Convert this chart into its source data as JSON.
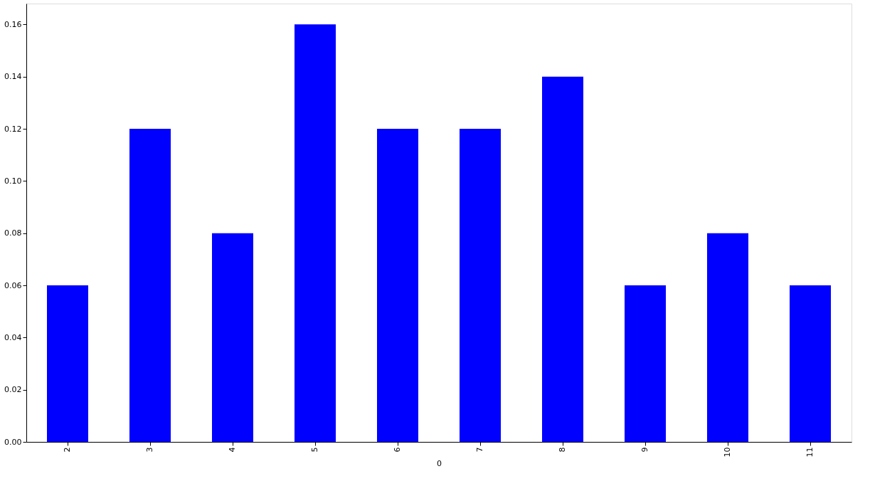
{
  "chart_data": {
    "type": "bar",
    "xlabel": "0",
    "categories": [
      "2",
      "3",
      "4",
      "5",
      "6",
      "7",
      "8",
      "9",
      "10",
      "11"
    ],
    "series": [
      {
        "color": "#0000ff",
        "values": [
          0.06,
          0.12,
          0.08,
          0.16,
          0.12,
          0.12,
          0.14,
          0.06,
          0.08,
          0.06
        ]
      }
    ],
    "ylim": [
      0,
      0.168
    ],
    "yticks": [
      {
        "value": 0,
        "label": "0.00"
      },
      {
        "value": 0.02,
        "label": "0.02"
      },
      {
        "value": 0.04,
        "label": "0.04"
      },
      {
        "value": 0.06,
        "label": "0.06"
      },
      {
        "value": 0.08,
        "label": "0.08"
      },
      {
        "value": 0.1,
        "label": "0.10"
      },
      {
        "value": 0.12,
        "label": "0.12"
      },
      {
        "value": 0.14,
        "label": "0.14"
      },
      {
        "value": 0.16,
        "label": "0.16"
      }
    ],
    "grid": false,
    "legend": false
  }
}
